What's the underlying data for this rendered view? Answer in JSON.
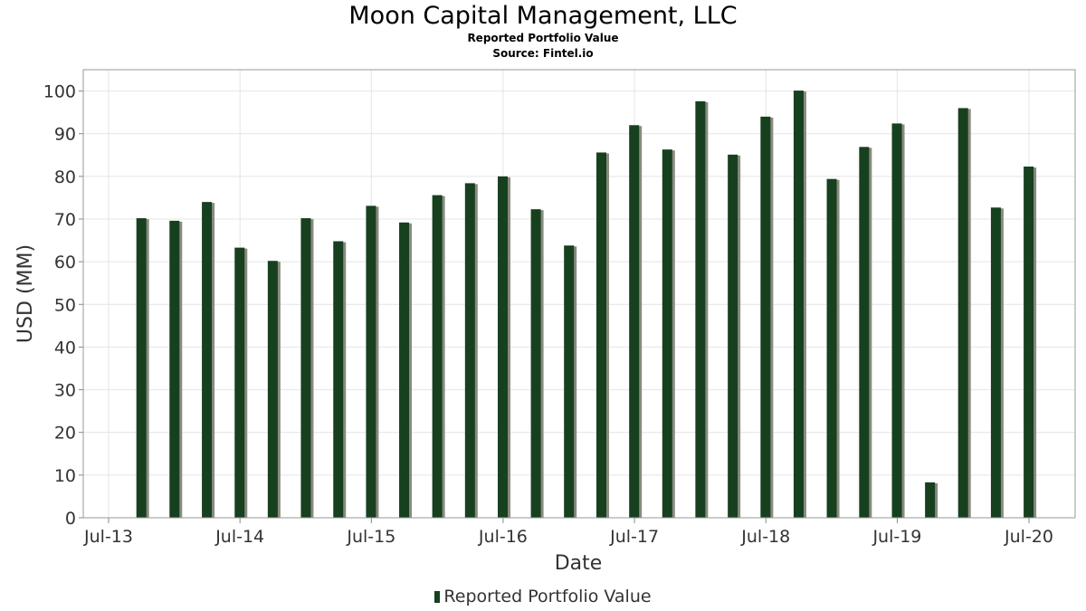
{
  "chart_data": {
    "type": "bar",
    "title": "Moon Capital Management, LLC",
    "subtitles": [
      "Reported Portfolio Value",
      "Source: Fintel.io"
    ],
    "xlabel": "Date",
    "ylabel": "USD (MM)",
    "ylim": [
      0,
      105
    ],
    "yticks": [
      0,
      10,
      20,
      30,
      40,
      50,
      60,
      70,
      80,
      90,
      100
    ],
    "xticks": [
      "Jul-13",
      "Jul-14",
      "Jul-15",
      "Jul-16",
      "Jul-17",
      "Jul-18",
      "Jul-19",
      "Jul-20"
    ],
    "grid": true,
    "legend_position": "bottom",
    "bar_color": "#17401f",
    "categories": [
      "2013-09-30",
      "2013-12-31",
      "2014-03-31",
      "2014-06-30",
      "2014-09-30",
      "2014-12-31",
      "2015-03-31",
      "2015-06-30",
      "2015-09-30",
      "2015-12-31",
      "2016-03-31",
      "2016-06-30",
      "2016-09-30",
      "2016-12-31",
      "2017-03-31",
      "2017-06-30",
      "2017-09-30",
      "2017-12-31",
      "2018-03-31",
      "2018-06-30",
      "2018-09-30",
      "2018-12-31",
      "2019-03-31",
      "2019-06-30",
      "2019-09-30",
      "2019-12-31",
      "2020-03-31",
      "2020-06-30"
    ],
    "series": [
      {
        "name": "Reported Portfolio Value",
        "values": [
          70.2,
          69.6,
          74.0,
          63.3,
          60.2,
          70.2,
          64.8,
          73.1,
          69.2,
          75.6,
          78.4,
          80.0,
          72.3,
          63.8,
          85.6,
          92.0,
          86.3,
          97.6,
          85.1,
          94.0,
          100.1,
          79.4,
          86.9,
          92.4,
          8.3,
          96.0,
          72.7,
          82.3
        ]
      }
    ]
  }
}
